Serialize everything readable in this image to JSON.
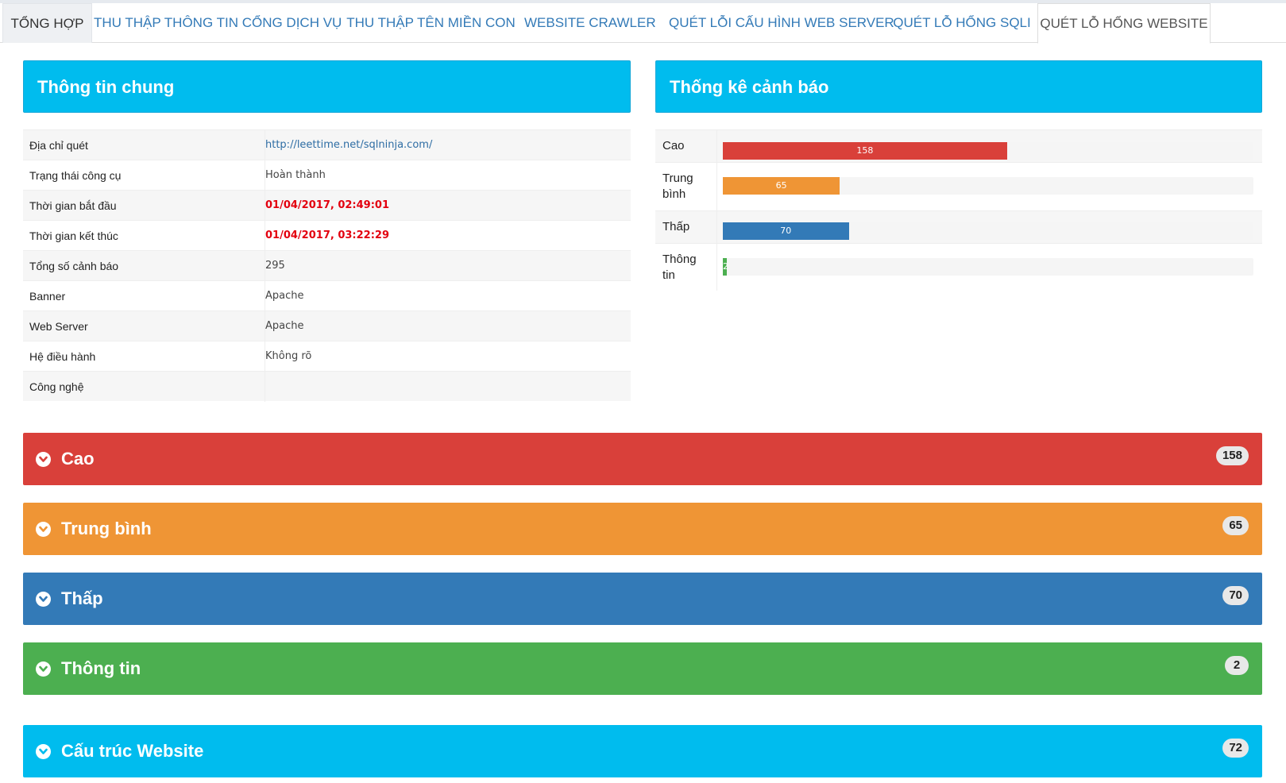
{
  "tabs": [
    {
      "label": "TỔNG HỢP"
    },
    {
      "label": "THU THẬP THÔNG TIN CỔNG DỊCH VỤ"
    },
    {
      "label": "THU THẬP TÊN MIỀN CON"
    },
    {
      "label": "WEBSITE CRAWLER"
    },
    {
      "label": "QUÉT LỖI CẤU HÌNH WEB SERVER"
    },
    {
      "label": "QUÉT LỖ HỔNG SQLI"
    },
    {
      "label": "QUÉT LỖ HỔNG WEBSITE"
    }
  ],
  "general": {
    "title": "Thông tin chung",
    "rows": [
      {
        "label": "Địa chỉ quét",
        "value": "http://leettime.net/sqlninja.com/"
      },
      {
        "label": "Trạng thái công cụ",
        "value": "Hoàn thành"
      },
      {
        "label": "Thời gian bắt đầu",
        "value": "01/04/2017, 02:49:01"
      },
      {
        "label": "Thời gian kết thúc",
        "value": "01/04/2017, 03:22:29"
      },
      {
        "label": "Tổng số cảnh báo",
        "value": "295"
      },
      {
        "label": "Banner",
        "value": "Apache"
      },
      {
        "label": "Web Server",
        "value": "Apache"
      },
      {
        "label": "Hệ điều hành",
        "value": "Không rõ"
      },
      {
        "label": "Công nghệ",
        "value": ""
      }
    ]
  },
  "stats": {
    "title": "Thống kê cảnh báo",
    "total": 295,
    "rows": [
      {
        "label": "Cao",
        "value": "158",
        "color": "#d9403a"
      },
      {
        "label": "Trung bình",
        "value": "65",
        "color": "#ef9535"
      },
      {
        "label": "Thấp",
        "value": "70",
        "color": "#337ab7"
      },
      {
        "label": "Thông tin",
        "value": "2",
        "color": "#4caf50"
      }
    ]
  },
  "sections": [
    {
      "title": "Cao",
      "count": "158",
      "color": "#d9403a"
    },
    {
      "title": "Trung bình",
      "count": "65",
      "color": "#ef9535"
    },
    {
      "title": "Thấp",
      "count": "70",
      "color": "#337ab7"
    },
    {
      "title": "Thông tin",
      "count": "2",
      "color": "#4caf50"
    },
    {
      "title": "Cấu trúc Website",
      "count": "72",
      "color": "#00bcee"
    }
  ]
}
